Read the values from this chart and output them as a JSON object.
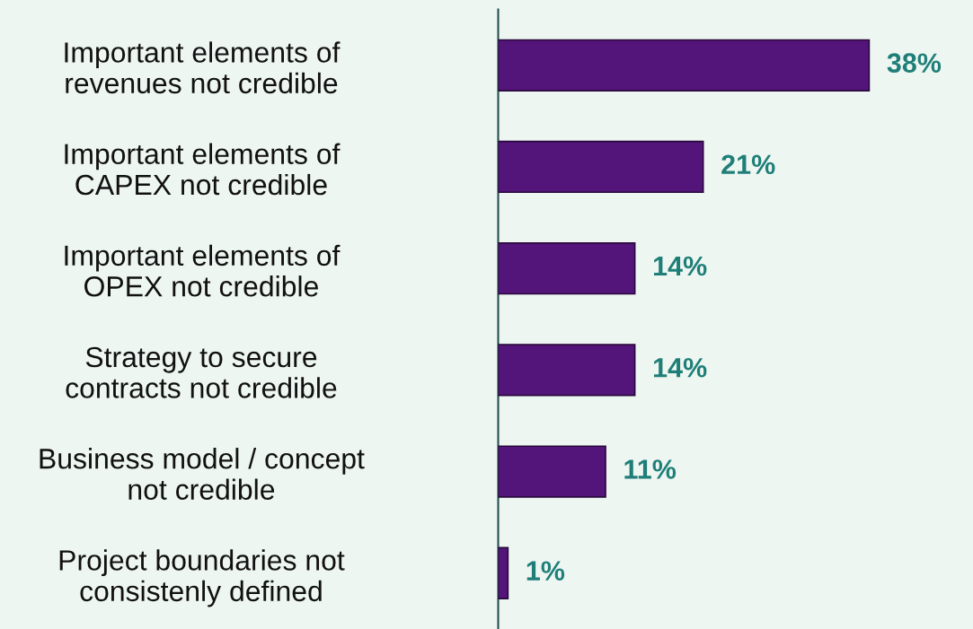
{
  "chart_data": {
    "type": "bar",
    "orientation": "horizontal",
    "categories": [
      "Important elements of\nrevenues not credible",
      "Important elements of\nCAPEX not credible",
      "Important elements of\nOPEX not credible",
      "Strategy to secure\ncontracts not credible",
      "Business model / concept\nnot credible",
      "Project boundaries not\nconsistenly defined"
    ],
    "values": [
      38,
      21,
      14,
      14,
      11,
      1
    ],
    "value_labels": [
      "38%",
      "21%",
      "14%",
      "14%",
      "11%",
      "1%"
    ],
    "color": "#53157a",
    "tick_labels": "y",
    "grid": false,
    "legend": false
  }
}
